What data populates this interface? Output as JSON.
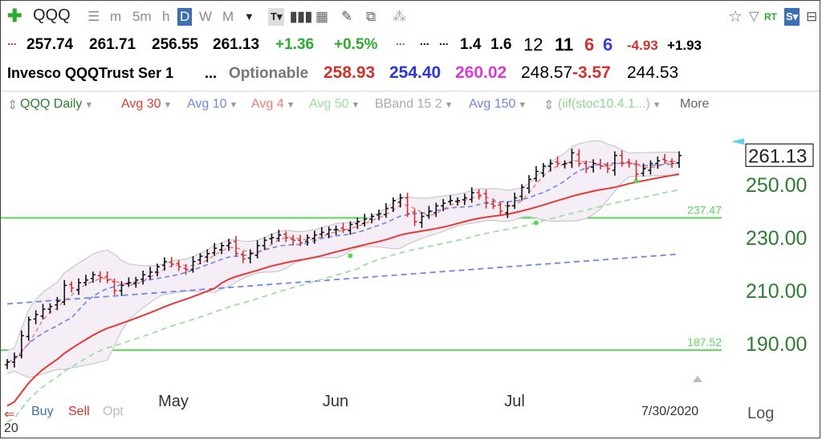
{
  "toolbar": {
    "symbol": "QQQ",
    "intervals": [
      "m",
      "5m",
      "h",
      "D",
      "W",
      "M"
    ],
    "active_interval": "D"
  },
  "quote_row1": {
    "open": "257.74",
    "high": "261.71",
    "low": "256.55",
    "close": "261.13",
    "change": "+1.36",
    "change_pct": "+0.5%",
    "v1": "1.4",
    "v2": "1.6",
    "v3": "12",
    "v4": "11",
    "v5": "6",
    "v6": "6",
    "v7": "-4.93",
    "v8": "+1.93"
  },
  "quote_row2": {
    "name": "Invesco QQQTrust Ser 1",
    "ellipsis": "...",
    "optionable": "Optionable",
    "p1": "258.93",
    "p2": "254.40",
    "p3": "260.02",
    "p4": "248.57",
    "p5": "-3.57",
    "p6": "244.53"
  },
  "legend": [
    {
      "label": "QQQ Daily",
      "color": "#2e7d32"
    },
    {
      "label": "Avg 30",
      "color": "#e53935"
    },
    {
      "label": "Avg 10",
      "color": "#6f86e8"
    },
    {
      "label": "Avg 4",
      "color": "#ef7b7b"
    },
    {
      "label": "Avg 50",
      "color": "#9be09b"
    },
    {
      "label": "BBand 15 2",
      "color": "#aaaaaa"
    },
    {
      "label": "Avg 150",
      "color": "#6f86e8"
    },
    {
      "label": "(iif(stoc10.4.1...)",
      "color": "#90d890"
    },
    {
      "label": "More",
      "color": "#666666"
    }
  ],
  "chart_data": {
    "type": "candlestick",
    "x_labels": [
      "May",
      "Jun",
      "Jul"
    ],
    "y_ticks": [
      "250.00",
      "230.00",
      "210.00",
      "190.00"
    ],
    "ylim": [
      180,
      270
    ],
    "last_price": "261.13",
    "horizontal_lines": [
      {
        "label": "237.47",
        "value": 237.47,
        "color": "#57d957"
      },
      {
        "label": "187.52",
        "value": 187.52,
        "color": "#57d957"
      }
    ],
    "price_closes": [
      183,
      185,
      193,
      199,
      201,
      203,
      204,
      206,
      212,
      211,
      213,
      214,
      216,
      215,
      214,
      210,
      212,
      213,
      214,
      216,
      217,
      219,
      221,
      220,
      219,
      218,
      221,
      223,
      224,
      226,
      227,
      228,
      224,
      222,
      224,
      227,
      229,
      230,
      231,
      230,
      229,
      228,
      230,
      231,
      232,
      233,
      233,
      233,
      235,
      236,
      237,
      238,
      239,
      241,
      244,
      245,
      239,
      236,
      238,
      240,
      242,
      243,
      244,
      244,
      245,
      247,
      246,
      243,
      242,
      240,
      242,
      245,
      249,
      252,
      255,
      257,
      258,
      258,
      258,
      262,
      258,
      256,
      258,
      257,
      256,
      261,
      258,
      258,
      254,
      256,
      258,
      259,
      259,
      258,
      261
    ],
    "series": [
      {
        "name": "Avg 30",
        "color": "#e53935"
      },
      {
        "name": "Avg 10",
        "color": "#6f86e8"
      },
      {
        "name": "Avg 4",
        "color": "#ef7b7b"
      },
      {
        "name": "Avg 50",
        "color": "#9be09b"
      },
      {
        "name": "BBand 15 2",
        "color": "#aaaaaa"
      },
      {
        "name": "Avg 150",
        "color": "#6f86e8"
      }
    ]
  },
  "footer": {
    "buy": "Buy",
    "sell": "Sell",
    "opt": "Opt",
    "date": "7/30/2020",
    "log": "Log",
    "year_fragment": "20"
  }
}
